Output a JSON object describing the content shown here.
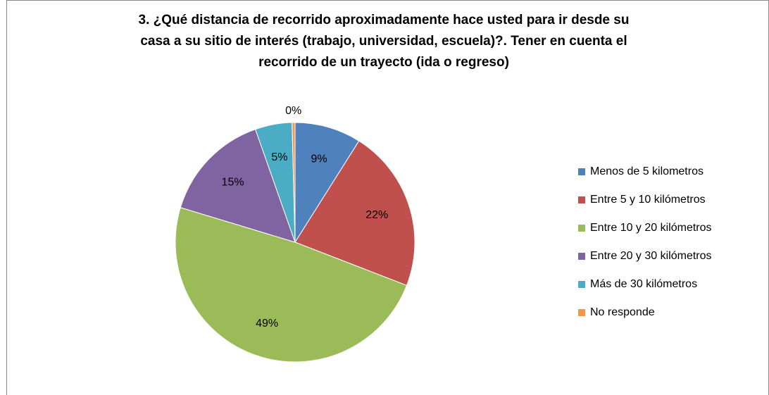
{
  "chart_data": {
    "type": "pie",
    "title": "3. ¿Qué distancia de recorrido aproximadamente hace usted para ir desde su\ncasa a su sitio de interés (trabajo,  universidad, escuela)?.  Tener en cuenta el\nrecorrido de un trayecto (ida o regreso)",
    "categories": [
      "Menos de 5 kilometros",
      "Entre 5 y 10 kilómetros",
      "Entre 10 y 20 kilómetros",
      "Entre 20 y 30 kilómetros",
      "Más de 30 kilómetros",
      "No responde"
    ],
    "values": [
      9,
      22,
      49,
      15,
      5,
      0.4
    ],
    "value_labels": [
      "9%",
      "22%",
      "49%",
      "15%",
      "5%",
      "0%"
    ],
    "colors": [
      "#4f81bd",
      "#c0504d",
      "#9bbb59",
      "#8064a2",
      "#4bacc6",
      "#f79646"
    ],
    "legend": "right"
  }
}
